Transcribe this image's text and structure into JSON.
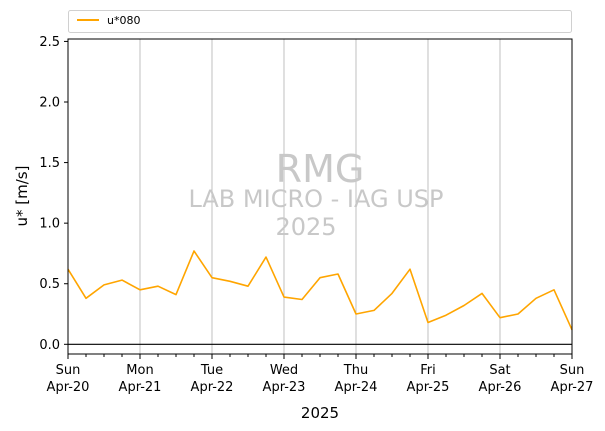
{
  "chart_data": {
    "type": "line",
    "title": "",
    "xlabel": "2025",
    "ylabel": "u* [m/s]",
    "ylim": [
      -0.08,
      2.52
    ],
    "xlim": [
      0,
      7
    ],
    "yticks": [
      "0.0",
      "0.5",
      "1.0",
      "1.5",
      "2.0",
      "2.5"
    ],
    "ytick_values": [
      0.0,
      0.5,
      1.0,
      1.5,
      2.0,
      2.5
    ],
    "xticks": [
      {
        "day": "Sun",
        "date": "Apr-20"
      },
      {
        "day": "Mon",
        "date": "Apr-21"
      },
      {
        "day": "Tue",
        "date": "Apr-22"
      },
      {
        "day": "Wed",
        "date": "Apr-23"
      },
      {
        "day": "Thu",
        "date": "Apr-24"
      },
      {
        "day": "Fri",
        "date": "Apr-25"
      },
      {
        "day": "Sat",
        "date": "Apr-26"
      },
      {
        "day": "Sun",
        "date": "Apr-27"
      }
    ],
    "grid": "vertical",
    "legend_position": "top",
    "zero_line": true,
    "colors": {
      "line": "#ffa500",
      "grid": "#b0b0b0"
    },
    "watermark": [
      "RMG",
      "LAB MICRO - IAG USP",
      "2025"
    ],
    "series": [
      {
        "name": "u*080",
        "x": [
          0,
          0.25,
          0.5,
          0.75,
          1,
          1.25,
          1.5,
          1.75,
          2,
          2.25,
          2.5,
          2.75,
          3,
          3.25,
          3.5,
          3.75,
          4,
          4.25,
          4.5,
          4.75,
          5,
          5.25,
          5.5,
          5.75,
          6,
          6.25,
          6.5,
          6.75,
          7
        ],
        "values": [
          0.62,
          0.38,
          0.49,
          0.53,
          0.45,
          0.48,
          0.41,
          0.77,
          0.55,
          0.52,
          0.48,
          0.72,
          0.39,
          0.37,
          0.55,
          0.58,
          0.25,
          0.28,
          0.42,
          0.62,
          0.18,
          0.24,
          0.32,
          0.42,
          0.22,
          0.25,
          0.38,
          0.45,
          0.12
        ]
      }
    ]
  }
}
